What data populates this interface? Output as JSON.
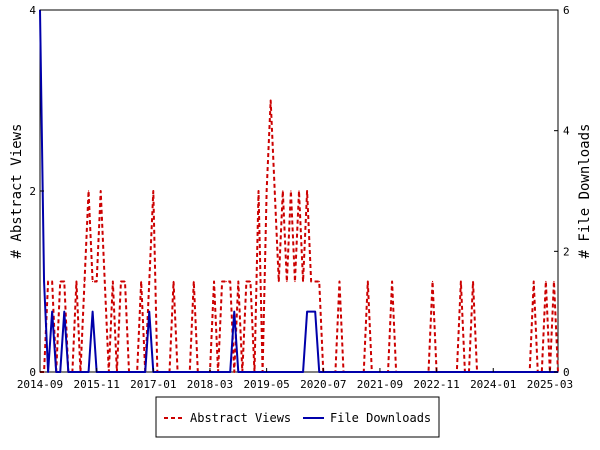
{
  "chart_data": {
    "type": "line",
    "xlabel": "",
    "ylabel_left": "# Abstract Views",
    "ylabel_right": "# File Downloads",
    "x_tick_labels": [
      "2014-09",
      "2015-11",
      "2017-01",
      "2018-03",
      "2019-05",
      "2020-07",
      "2021-09",
      "2022-11",
      "2024-01",
      "2025-03"
    ],
    "ylim_left": [
      0,
      4
    ],
    "ylim_right": [
      0,
      6
    ],
    "y_ticks_left": [
      0,
      2,
      4
    ],
    "y_ticks_right": [
      0,
      2,
      4,
      6
    ],
    "grid": false,
    "legend_position": "bottom-center",
    "x_start": "2014-09",
    "x_end": "2025-05",
    "series": [
      {
        "name": "Abstract Views",
        "axis": "left",
        "color": "#cc0000",
        "style": "dashed",
        "points": [
          [
            "2014-09",
            0
          ],
          [
            "2014-10",
            0
          ],
          [
            "2014-11",
            1
          ],
          [
            "2014-12",
            1
          ],
          [
            "2015-01",
            0
          ],
          [
            "2015-02",
            1
          ],
          [
            "2015-03",
            1
          ],
          [
            "2015-04",
            0
          ],
          [
            "2015-05",
            0
          ],
          [
            "2015-06",
            1
          ],
          [
            "2015-07",
            0
          ],
          [
            "2015-08",
            1
          ],
          [
            "2015-09",
            2
          ],
          [
            "2015-10",
            1
          ],
          [
            "2015-11",
            1
          ],
          [
            "2015-12",
            2
          ],
          [
            "2016-01",
            1
          ],
          [
            "2016-02",
            0
          ],
          [
            "2016-03",
            1
          ],
          [
            "2016-04",
            0
          ],
          [
            "2016-05",
            1
          ],
          [
            "2016-06",
            1
          ],
          [
            "2016-07",
            0
          ],
          [
            "2016-08",
            0
          ],
          [
            "2016-09",
            0
          ],
          [
            "2016-10",
            1
          ],
          [
            "2016-11",
            0
          ],
          [
            "2016-12",
            1
          ],
          [
            "2017-01",
            2
          ],
          [
            "2017-02",
            0
          ],
          [
            "2017-03",
            0
          ],
          [
            "2017-04",
            0
          ],
          [
            "2017-05",
            0
          ],
          [
            "2017-06",
            1
          ],
          [
            "2017-07",
            0
          ],
          [
            "2017-08",
            0
          ],
          [
            "2017-09",
            0
          ],
          [
            "2017-10",
            0
          ],
          [
            "2017-11",
            1
          ],
          [
            "2017-12",
            0
          ],
          [
            "2018-01",
            0
          ],
          [
            "2018-02",
            0
          ],
          [
            "2018-03",
            0
          ],
          [
            "2018-04",
            1
          ],
          [
            "2018-05",
            0
          ],
          [
            "2018-06",
            1
          ],
          [
            "2018-07",
            1
          ],
          [
            "2018-08",
            1
          ],
          [
            "2018-09",
            0
          ],
          [
            "2018-10",
            1
          ],
          [
            "2018-11",
            0
          ],
          [
            "2018-12",
            1
          ],
          [
            "2019-01",
            1
          ],
          [
            "2019-02",
            0
          ],
          [
            "2019-03",
            2
          ],
          [
            "2019-04",
            0
          ],
          [
            "2019-05",
            2
          ],
          [
            "2019-06",
            3
          ],
          [
            "2019-07",
            2
          ],
          [
            "2019-08",
            1
          ],
          [
            "2019-09",
            2
          ],
          [
            "2019-10",
            1
          ],
          [
            "2019-11",
            2
          ],
          [
            "2019-12",
            1
          ],
          [
            "2020-01",
            2
          ],
          [
            "2020-02",
            1
          ],
          [
            "2020-03",
            2
          ],
          [
            "2020-04",
            1
          ],
          [
            "2020-05",
            1
          ],
          [
            "2020-06",
            1
          ],
          [
            "2020-07",
            0
          ],
          [
            "2020-08",
            0
          ],
          [
            "2020-09",
            0
          ],
          [
            "2020-10",
            0
          ],
          [
            "2020-11",
            1
          ],
          [
            "2020-12",
            0
          ],
          [
            "2021-01",
            0
          ],
          [
            "2021-02",
            0
          ],
          [
            "2021-03",
            0
          ],
          [
            "2021-04",
            0
          ],
          [
            "2021-05",
            0
          ],
          [
            "2021-06",
            1
          ],
          [
            "2021-07",
            0
          ],
          [
            "2021-08",
            0
          ],
          [
            "2021-09",
            0
          ],
          [
            "2021-10",
            0
          ],
          [
            "2021-11",
            0
          ],
          [
            "2021-12",
            1
          ],
          [
            "2022-01",
            0
          ],
          [
            "2022-02",
            0
          ],
          [
            "2022-03",
            0
          ],
          [
            "2022-04",
            0
          ],
          [
            "2022-05",
            0
          ],
          [
            "2022-06",
            0
          ],
          [
            "2022-07",
            0
          ],
          [
            "2022-08",
            0
          ],
          [
            "2022-09",
            0
          ],
          [
            "2022-10",
            1
          ],
          [
            "2022-11",
            0
          ],
          [
            "2022-12",
            0
          ],
          [
            "2023-01",
            0
          ],
          [
            "2023-02",
            0
          ],
          [
            "2023-03",
            0
          ],
          [
            "2023-04",
            0
          ],
          [
            "2023-05",
            1
          ],
          [
            "2023-06",
            0
          ],
          [
            "2023-07",
            0
          ],
          [
            "2023-08",
            1
          ],
          [
            "2023-09",
            0
          ],
          [
            "2023-10",
            0
          ],
          [
            "2023-11",
            0
          ],
          [
            "2023-12",
            0
          ],
          [
            "2024-01",
            0
          ],
          [
            "2024-02",
            0
          ],
          [
            "2024-03",
            0
          ],
          [
            "2024-04",
            0
          ],
          [
            "2024-05",
            0
          ],
          [
            "2024-06",
            0
          ],
          [
            "2024-07",
            0
          ],
          [
            "2024-08",
            0
          ],
          [
            "2024-09",
            0
          ],
          [
            "2024-10",
            0
          ],
          [
            "2024-11",
            1
          ],
          [
            "2024-12",
            0
          ],
          [
            "2025-01",
            0
          ],
          [
            "2025-02",
            1
          ],
          [
            "2025-03",
            0
          ],
          [
            "2025-04",
            1
          ],
          [
            "2025-05",
            0
          ]
        ]
      },
      {
        "name": "File Downloads",
        "axis": "right",
        "color": "#0000aa",
        "style": "solid",
        "points": [
          [
            "2014-09",
            6
          ],
          [
            "2014-10",
            1.5
          ],
          [
            "2014-11",
            0
          ],
          [
            "2014-12",
            1
          ],
          [
            "2015-01",
            0
          ],
          [
            "2015-02",
            0
          ],
          [
            "2015-03",
            1
          ],
          [
            "2015-04",
            0
          ],
          [
            "2015-05",
            0
          ],
          [
            "2015-06",
            0
          ],
          [
            "2015-07",
            0
          ],
          [
            "2015-08",
            0
          ],
          [
            "2015-09",
            0
          ],
          [
            "2015-10",
            1
          ],
          [
            "2015-11",
            0
          ],
          [
            "2015-12",
            0
          ],
          [
            "2016-01",
            0
          ],
          [
            "2016-02",
            0
          ],
          [
            "2016-03",
            0
          ],
          [
            "2016-04",
            0
          ],
          [
            "2016-05",
            0
          ],
          [
            "2016-06",
            0
          ],
          [
            "2016-07",
            0
          ],
          [
            "2016-08",
            0
          ],
          [
            "2016-09",
            0
          ],
          [
            "2016-10",
            0
          ],
          [
            "2016-11",
            0
          ],
          [
            "2016-12",
            1
          ],
          [
            "2017-01",
            0
          ],
          [
            "2017-02",
            0
          ],
          [
            "2017-03",
            0
          ],
          [
            "2017-04",
            0
          ],
          [
            "2017-05",
            0
          ],
          [
            "2017-06",
            0
          ],
          [
            "2017-07",
            0
          ],
          [
            "2017-08",
            0
          ],
          [
            "2017-09",
            0
          ],
          [
            "2017-10",
            0
          ],
          [
            "2017-11",
            0
          ],
          [
            "2017-12",
            0
          ],
          [
            "2018-01",
            0
          ],
          [
            "2018-02",
            0
          ],
          [
            "2018-03",
            0
          ],
          [
            "2018-04",
            0
          ],
          [
            "2018-05",
            0
          ],
          [
            "2018-06",
            0
          ],
          [
            "2018-07",
            0
          ],
          [
            "2018-08",
            0
          ],
          [
            "2018-09",
            1
          ],
          [
            "2018-10",
            0
          ],
          [
            "2018-11",
            0
          ],
          [
            "2018-12",
            0
          ],
          [
            "2019-01",
            0
          ],
          [
            "2019-02",
            0
          ],
          [
            "2019-03",
            0
          ],
          [
            "2019-04",
            0
          ],
          [
            "2019-05",
            0
          ],
          [
            "2019-06",
            0
          ],
          [
            "2019-07",
            0
          ],
          [
            "2019-08",
            0
          ],
          [
            "2019-09",
            0
          ],
          [
            "2019-10",
            0
          ],
          [
            "2019-11",
            0
          ],
          [
            "2019-12",
            0
          ],
          [
            "2020-01",
            0
          ],
          [
            "2020-02",
            0
          ],
          [
            "2020-03",
            1
          ],
          [
            "2020-04",
            1
          ],
          [
            "2020-05",
            1
          ],
          [
            "2020-06",
            0
          ],
          [
            "2020-07",
            0
          ],
          [
            "2020-08",
            0
          ],
          [
            "2020-09",
            0
          ],
          [
            "2020-10",
            0
          ],
          [
            "2020-11",
            0
          ],
          [
            "2020-12",
            0
          ],
          [
            "2021-01",
            0
          ],
          [
            "2021-02",
            0
          ],
          [
            "2021-03",
            0
          ],
          [
            "2021-04",
            0
          ],
          [
            "2021-05",
            0
          ],
          [
            "2021-06",
            0
          ],
          [
            "2021-07",
            0
          ],
          [
            "2021-08",
            0
          ],
          [
            "2021-09",
            0
          ],
          [
            "2021-10",
            0
          ],
          [
            "2021-11",
            0
          ],
          [
            "2021-12",
            0
          ],
          [
            "2022-01",
            0
          ],
          [
            "2022-02",
            0
          ],
          [
            "2022-03",
            0
          ],
          [
            "2022-04",
            0
          ],
          [
            "2022-05",
            0
          ],
          [
            "2022-06",
            0
          ],
          [
            "2022-07",
            0
          ],
          [
            "2022-08",
            0
          ],
          [
            "2022-09",
            0
          ],
          [
            "2022-10",
            0
          ],
          [
            "2022-11",
            0
          ],
          [
            "2022-12",
            0
          ],
          [
            "2023-01",
            0
          ],
          [
            "2023-02",
            0
          ],
          [
            "2023-03",
            0
          ],
          [
            "2023-04",
            0
          ],
          [
            "2023-05",
            0
          ],
          [
            "2023-06",
            0
          ],
          [
            "2023-07",
            0
          ],
          [
            "2023-08",
            0
          ],
          [
            "2023-09",
            0
          ],
          [
            "2023-10",
            0
          ],
          [
            "2023-11",
            0
          ],
          [
            "2023-12",
            0
          ],
          [
            "2024-01",
            0
          ],
          [
            "2024-02",
            0
          ],
          [
            "2024-03",
            0
          ],
          [
            "2024-04",
            0
          ],
          [
            "2024-05",
            0
          ],
          [
            "2024-06",
            0
          ],
          [
            "2024-07",
            0
          ],
          [
            "2024-08",
            0
          ],
          [
            "2024-09",
            0
          ],
          [
            "2024-10",
            0
          ],
          [
            "2024-11",
            0
          ],
          [
            "2024-12",
            0
          ],
          [
            "2025-01",
            0
          ],
          [
            "2025-02",
            0
          ],
          [
            "2025-03",
            0
          ],
          [
            "2025-04",
            0
          ],
          [
            "2025-05",
            0
          ]
        ]
      }
    ]
  }
}
